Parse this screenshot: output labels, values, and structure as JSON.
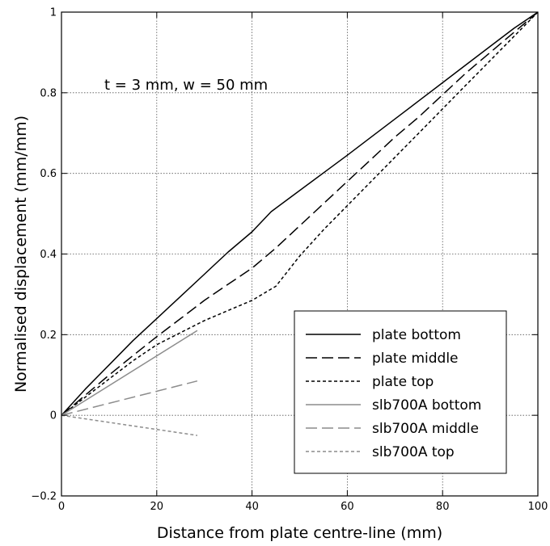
{
  "chart_data": {
    "type": "line",
    "title": "",
    "xlabel": "Distance from plate centre-line (mm)",
    "ylabel": "Normalised displacement (mm/mm)",
    "xlim": [
      0,
      100
    ],
    "ylim": [
      -0.2,
      1
    ],
    "x_ticks": [
      0,
      20,
      40,
      60,
      80,
      100
    ],
    "x_tick_labels": [
      "0",
      "20",
      "40",
      "60",
      "80",
      "100"
    ],
    "y_ticks": [
      -0.2,
      0,
      0.2,
      0.4,
      0.6,
      0.8,
      1
    ],
    "y_tick_labels": [
      "−0.2",
      "0",
      "0.2",
      "0.4",
      "0.6",
      "0.8",
      "1"
    ],
    "grid": true,
    "legend_position": "bottom-right",
    "annotation": "t = 3 mm, w = 50 mm",
    "annotation_position": {
      "x": 9,
      "y": 0.82
    },
    "series": [
      {
        "name": "plate bottom",
        "color": "#000000",
        "dash": "solid",
        "x": [
          0,
          5,
          10,
          15,
          20,
          25,
          30,
          35,
          40,
          44,
          48,
          52,
          56,
          60,
          65,
          70,
          75,
          80,
          85,
          90,
          95,
          100
        ],
        "y": [
          0,
          0.065,
          0.125,
          0.185,
          0.24,
          0.295,
          0.35,
          0.405,
          0.455,
          0.505,
          0.54,
          0.575,
          0.61,
          0.645,
          0.69,
          0.735,
          0.78,
          0.825,
          0.87,
          0.915,
          0.96,
          1.0
        ]
      },
      {
        "name": "plate middle",
        "color": "#000000",
        "dash": "long",
        "x": [
          0,
          5,
          10,
          15,
          20,
          25,
          30,
          35,
          40,
          45,
          50,
          55,
          60,
          65,
          70,
          75,
          80,
          85,
          90,
          95,
          100
        ],
        "y": [
          0,
          0.05,
          0.1,
          0.148,
          0.195,
          0.24,
          0.285,
          0.325,
          0.365,
          0.415,
          0.47,
          0.525,
          0.58,
          0.635,
          0.69,
          0.74,
          0.795,
          0.85,
          0.9,
          0.95,
          1.0
        ]
      },
      {
        "name": "plate top",
        "color": "#000000",
        "dash": "short",
        "x": [
          0,
          5,
          10,
          15,
          20,
          25,
          30,
          35,
          40,
          45,
          50,
          55,
          60,
          65,
          70,
          75,
          80,
          85,
          90,
          95,
          100
        ],
        "y": [
          0,
          0.045,
          0.09,
          0.135,
          0.175,
          0.205,
          0.235,
          0.26,
          0.285,
          0.32,
          0.395,
          0.46,
          0.52,
          0.58,
          0.64,
          0.7,
          0.76,
          0.82,
          0.88,
          0.94,
          1.0
        ]
      },
      {
        "name": "slb700A bottom",
        "color": "#8c8c8c",
        "dash": "solid",
        "x": [
          0,
          28.5
        ],
        "y": [
          0,
          0.21
        ]
      },
      {
        "name": "slb700A middle",
        "color": "#8c8c8c",
        "dash": "long",
        "x": [
          0,
          28.5
        ],
        "y": [
          0,
          0.085
        ]
      },
      {
        "name": "slb700A top",
        "color": "#8c8c8c",
        "dash": "short",
        "x": [
          0,
          28.5
        ],
        "y": [
          0,
          -0.05
        ]
      }
    ]
  }
}
